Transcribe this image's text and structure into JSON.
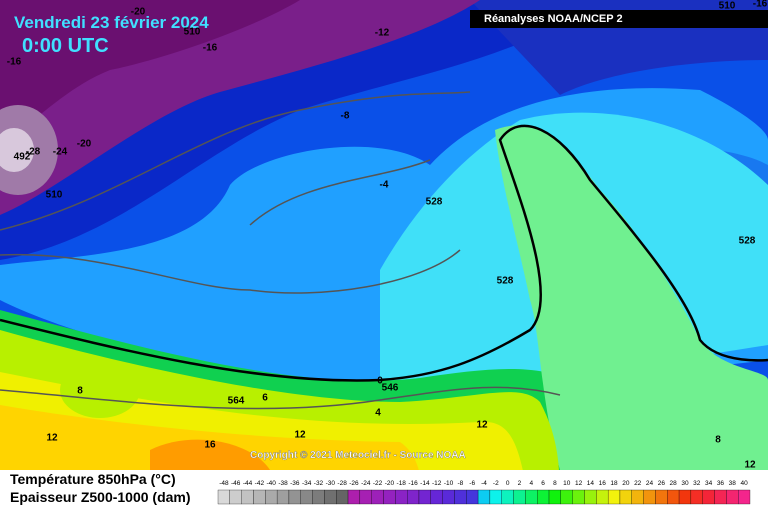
{
  "header": {
    "date": "Vendredi 23 février 2024",
    "time": "0:00 UTC",
    "source": "Réanalyses NOAA/NCEP 2"
  },
  "copyright": "Copyright © 2021 Meteociel.fr - Source NOAA",
  "legend": {
    "title1": "Température 850hPa (°C)",
    "title2": "Epaisseur Z500-1000 (dam)",
    "scale": [
      -48,
      -46,
      -44,
      -42,
      -40,
      -38,
      -36,
      -34,
      -32,
      -30,
      -28,
      -26,
      -24,
      -22,
      -20,
      -18,
      -16,
      -14,
      -12,
      -10,
      -8,
      -6,
      -4,
      -2,
      0,
      2,
      4,
      6,
      8,
      10,
      12,
      14,
      16,
      18,
      20,
      22,
      24,
      26,
      28,
      30,
      32,
      34,
      36,
      38,
      40
    ]
  },
  "labels": [
    -20,
    510,
    -16,
    -12,
    -16,
    -8,
    492,
    -28,
    -24,
    -20,
    510,
    -4,
    528,
    528,
    528,
    546,
    0,
    564,
    6,
    8,
    4,
    12,
    12,
    16,
    12,
    8,
    12,
    510,
    -16
  ]
}
